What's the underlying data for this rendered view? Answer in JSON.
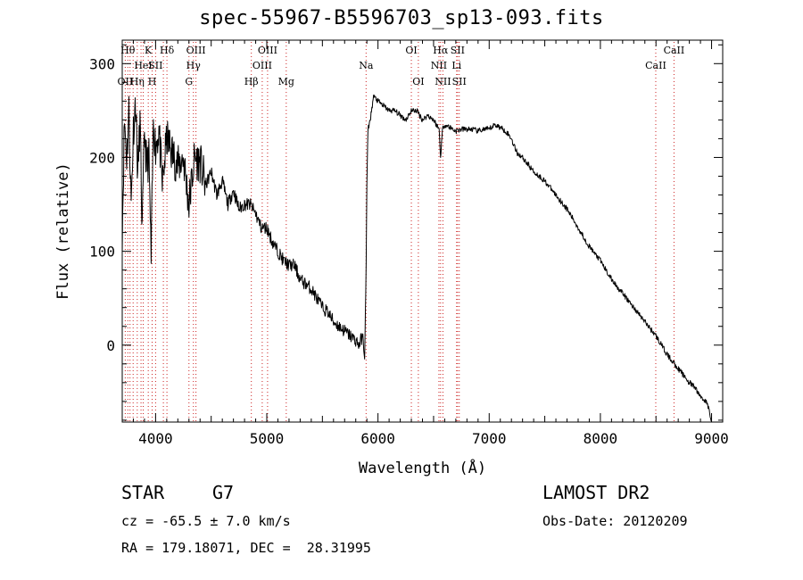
{
  "chart_data": {
    "type": "line",
    "title": "spec-55967-B5596703_sp13-093.fits",
    "xlabel": "Wavelength (Å)",
    "ylabel": "Flux (relative)",
    "xlim": [
      3700,
      9100
    ],
    "ylim": [
      -82,
      325
    ],
    "xticks": [
      "4000",
      "5000",
      "6000",
      "7000",
      "8000",
      "9000"
    ],
    "yticks": [
      "0",
      "100",
      "200",
      "300"
    ],
    "series": [
      {
        "x": [
          3700,
          3720,
          3740,
          3760,
          3780,
          3800,
          3820,
          3840,
          3860,
          3880,
          3900,
          3920,
          3940,
          3960,
          3980,
          4000,
          4030,
          4060,
          4100,
          4150,
          4200,
          4250,
          4300,
          4350,
          4400,
          4450,
          4500,
          4550,
          4600,
          4650,
          4700,
          4750,
          4800,
          4850,
          4900,
          4950,
          5000,
          5050,
          5100,
          5150,
          5200,
          5250,
          5300,
          5350,
          5400,
          5450,
          5500,
          5550,
          5600,
          5650,
          5700,
          5750,
          5800,
          5830,
          5860,
          5880,
          5890,
          5900,
          5910,
          5930,
          5960,
          6000,
          6050,
          6100,
          6150,
          6200,
          6250,
          6300,
          6350,
          6400,
          6450,
          6500,
          6550,
          6563,
          6580,
          6600,
          6650,
          6700,
          6750,
          6800,
          6850,
          6900,
          6950,
          7000,
          7050,
          7100,
          7150,
          7200,
          7250,
          7300,
          7400,
          7500,
          7600,
          7700,
          7800,
          7900,
          8000,
          8100,
          8200,
          8300,
          8400,
          8500,
          8600,
          8700,
          8800,
          8850,
          8900,
          8950,
          8980,
          9000
        ],
        "y": [
          120,
          240,
          200,
          250,
          150,
          230,
          260,
          180,
          240,
          120,
          230,
          190,
          200,
          90,
          240,
          210,
          230,
          170,
          220,
          205,
          190,
          200,
          150,
          200,
          195,
          170,
          185,
          160,
          175,
          150,
          165,
          145,
          150,
          150,
          140,
          125,
          125,
          110,
          100,
          90,
          85,
          85,
          70,
          65,
          60,
          50,
          40,
          35,
          25,
          20,
          15,
          10,
          5,
          0,
          10,
          -10,
          50,
          170,
          230,
          240,
          265,
          260,
          255,
          250,
          250,
          245,
          240,
          250,
          250,
          240,
          245,
          240,
          230,
          200,
          230,
          235,
          232,
          228,
          230,
          230,
          230,
          228,
          230,
          230,
          235,
          232,
          228,
          220,
          205,
          200,
          185,
          175,
          160,
          145,
          125,
          105,
          90,
          70,
          55,
          40,
          25,
          10,
          -10,
          -25,
          -40,
          -45,
          -55,
          -60,
          -70,
          -80
        ]
      }
    ],
    "lines": [
      {
        "x": 3727,
        "l": "OII",
        "r": 3
      },
      {
        "x": 3750,
        "l": "Hθ",
        "r": 1
      },
      {
        "x": 3770,
        "l": "",
        "r": 0
      },
      {
        "x": 3798,
        "l": "",
        "r": 0
      },
      {
        "x": 3835,
        "l": "Hη",
        "r": 3
      },
      {
        "x": 3869,
        "l": "",
        "r": 0
      },
      {
        "x": 3889,
        "l": "HeI",
        "r": 2
      },
      {
        "x": 3934,
        "l": "K",
        "r": 1
      },
      {
        "x": 3969,
        "l": "H",
        "r": 3
      },
      {
        "x": 4000,
        "l": "SII",
        "r": 2
      },
      {
        "x": 4070,
        "l": "",
        "r": 0
      },
      {
        "x": 4102,
        "l": "Hδ",
        "r": 1
      },
      {
        "x": 4300,
        "l": "G",
        "r": 3
      },
      {
        "x": 4340,
        "l": "Hγ",
        "r": 2
      },
      {
        "x": 4363,
        "l": "OIII",
        "r": 1
      },
      {
        "x": 4861,
        "l": "Hβ",
        "r": 3
      },
      {
        "x": 4959,
        "l": "OIII",
        "r": 2
      },
      {
        "x": 5007,
        "l": "OIII",
        "r": 1
      },
      {
        "x": 5175,
        "l": "Mg",
        "r": 3
      },
      {
        "x": 5893,
        "l": "Na",
        "r": 2
      },
      {
        "x": 6300,
        "l": "OI",
        "r": 1
      },
      {
        "x": 6363,
        "l": "OI",
        "r": 3
      },
      {
        "x": 6548,
        "l": "NII",
        "r": 2
      },
      {
        "x": 6563,
        "l": "Hα",
        "r": 1
      },
      {
        "x": 6584,
        "l": "NII",
        "r": 3
      },
      {
        "x": 6707,
        "l": "Li",
        "r": 2
      },
      {
        "x": 6716,
        "l": "SII",
        "r": 1
      },
      {
        "x": 6731,
        "l": "SII",
        "r": 3
      },
      {
        "x": 8498,
        "l": "CaII",
        "r": 2
      },
      {
        "x": 8662,
        "l": "CaII",
        "r": 1
      }
    ],
    "grid": false
  },
  "info": {
    "class_label": "STAR",
    "subclass": "G7",
    "cz": "cz = -65.5 ± 7.0 km/s",
    "radec": "RA = 179.18071, DEC =  28.31995",
    "survey": "LAMOST DR2",
    "obs_date": "Obs-Date: 20120209"
  },
  "colors": {
    "spectrum": "#000000",
    "line_marker": "#cc2222",
    "axis": "#000000"
  }
}
